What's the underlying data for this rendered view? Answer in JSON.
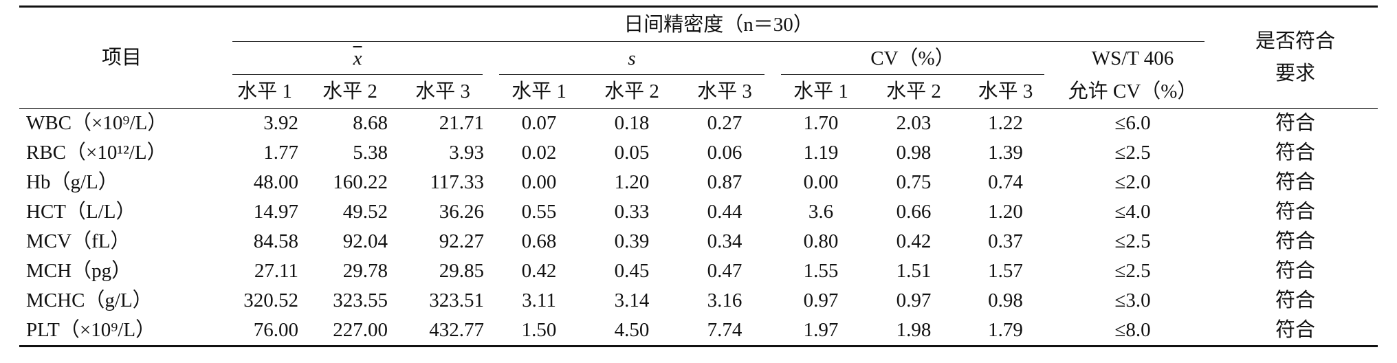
{
  "table": {
    "header": {
      "item": "项目",
      "group": "日间精密度（n＝30）",
      "mean": "x",
      "sd": "s",
      "cv": "CV（%）",
      "allow_top": "WS/T 406",
      "allow_bottom": "允许 CV（%）",
      "conform_top": "是否符合",
      "conform_bottom": "要求",
      "levels": [
        "水平 1",
        "水平 2",
        "水平 3"
      ]
    },
    "rows": [
      {
        "item": "WBC（×10⁹/L）",
        "mean": [
          "3.92",
          "8.68",
          "21.71"
        ],
        "sd": [
          "0.07",
          "0.18",
          "0.27"
        ],
        "cv": [
          "1.70",
          "2.03",
          "1.22"
        ],
        "allow": "≤6.0",
        "conform": "符合"
      },
      {
        "item": "RBC（×10¹²/L）",
        "mean": [
          "1.77",
          "5.38",
          "3.93"
        ],
        "sd": [
          "0.02",
          "0.05",
          "0.06"
        ],
        "cv": [
          "1.19",
          "0.98",
          "1.39"
        ],
        "allow": "≤2.5",
        "conform": "符合"
      },
      {
        "item": "Hb（g/L）",
        "mean": [
          "48.00",
          "160.22",
          "117.33"
        ],
        "sd": [
          "0.00",
          "1.20",
          "0.87"
        ],
        "cv": [
          "0.00",
          "0.75",
          "0.74"
        ],
        "allow": "≤2.0",
        "conform": "符合"
      },
      {
        "item": "HCT（L/L）",
        "mean": [
          "14.97",
          "49.52",
          "36.26"
        ],
        "sd": [
          "0.55",
          "0.33",
          "0.44"
        ],
        "cv": [
          "3.6",
          "0.66",
          "1.20"
        ],
        "allow": "≤4.0",
        "conform": "符合"
      },
      {
        "item": "MCV（fL）",
        "mean": [
          "84.58",
          "92.04",
          "92.27"
        ],
        "sd": [
          "0.68",
          "0.39",
          "0.34"
        ],
        "cv": [
          "0.80",
          "0.42",
          "0.37"
        ],
        "allow": "≤2.5",
        "conform": "符合"
      },
      {
        "item": "MCH（pg）",
        "mean": [
          "27.11",
          "29.78",
          "29.85"
        ],
        "sd": [
          "0.42",
          "0.45",
          "0.47"
        ],
        "cv": [
          "1.55",
          "1.51",
          "1.57"
        ],
        "allow": "≤2.5",
        "conform": "符合"
      },
      {
        "item": "MCHC（g/L）",
        "mean": [
          "320.52",
          "323.55",
          "323.51"
        ],
        "sd": [
          "3.11",
          "3.14",
          "3.16"
        ],
        "cv": [
          "0.97",
          "0.97",
          "0.98"
        ],
        "allow": "≤3.0",
        "conform": "符合"
      },
      {
        "item": "PLT（×10⁹/L）",
        "mean": [
          "76.00",
          "227.00",
          "432.77"
        ],
        "sd": [
          "1.50",
          "4.50",
          "7.74"
        ],
        "cv": [
          "1.97",
          "1.98",
          "1.79"
        ],
        "allow": "≤8.0",
        "conform": "符合"
      }
    ]
  }
}
